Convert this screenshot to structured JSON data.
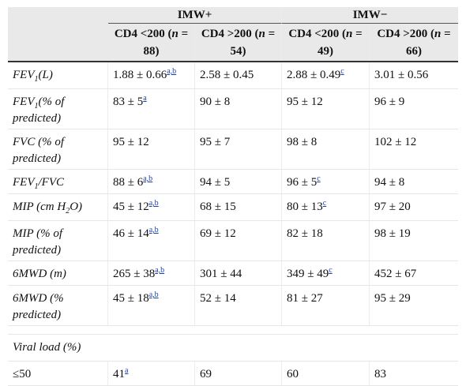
{
  "table": {
    "group_headers": [
      "IMW+",
      "IMW−"
    ],
    "col_headers": [
      {
        "pre": "CD4 <200 (",
        "n": "n",
        "post": " = 88)"
      },
      {
        "pre": "CD4 >200 (",
        "n": "n",
        "post": " = 54)"
      },
      {
        "pre": "CD4 <200 (",
        "n": "n",
        "post": " = 49)"
      },
      {
        "pre": "CD4 >200 (",
        "n": "n",
        "post": " = 66)"
      }
    ],
    "rows": [
      {
        "label_main": "FEV",
        "label_sub": "1",
        "label_rest": "(L)",
        "cells": [
          {
            "v": "1.88 ± 0.66",
            "s": "a,b"
          },
          {
            "v": "2.58 ± 0.45",
            "s": ""
          },
          {
            "v": "2.88 ± 0.49",
            "s": "c"
          },
          {
            "v": "3.01 ± 0.56",
            "s": ""
          }
        ]
      },
      {
        "label_main": "FEV",
        "label_sub": "1",
        "label_rest": "(% of predicted)",
        "cells": [
          {
            "v": "83 ± 5",
            "s": "a"
          },
          {
            "v": "90 ± 8",
            "s": ""
          },
          {
            "v": "95 ± 12",
            "s": ""
          },
          {
            "v": "96 ± 9",
            "s": ""
          }
        ]
      },
      {
        "label_main": "FVC (% of predicted)",
        "label_sub": "",
        "label_rest": "",
        "cells": [
          {
            "v": "95 ± 12",
            "s": ""
          },
          {
            "v": "95 ± 7",
            "s": ""
          },
          {
            "v": "98 ± 8",
            "s": ""
          },
          {
            "v": "102 ± 12",
            "s": ""
          }
        ]
      },
      {
        "label_main": "FEV",
        "label_sub": "1",
        "label_rest": "/FVC",
        "cells": [
          {
            "v": "88 ± 6",
            "s": "a,b"
          },
          {
            "v": "94 ± 5",
            "s": ""
          },
          {
            "v": "96 ± 5",
            "s": "c"
          },
          {
            "v": "94 ± 8",
            "s": ""
          }
        ]
      },
      {
        "label_main": "MIP (cm H",
        "label_sub": "2",
        "label_rest": "O)",
        "cells": [
          {
            "v": "45 ± 12",
            "s": "a,b"
          },
          {
            "v": "68 ± 15",
            "s": ""
          },
          {
            "v": "80 ± 13",
            "s": "c"
          },
          {
            "v": "97 ± 20",
            "s": ""
          }
        ]
      },
      {
        "label_main": "MIP (% of predicted)",
        "label_sub": "",
        "label_rest": "",
        "cells": [
          {
            "v": "46 ± 14",
            "s": "a,b"
          },
          {
            "v": "69 ± 12",
            "s": ""
          },
          {
            "v": "82 ± 18",
            "s": ""
          },
          {
            "v": "98 ± 19",
            "s": ""
          }
        ]
      },
      {
        "label_main": "6MWD (m)",
        "label_sub": "",
        "label_rest": "",
        "cells": [
          {
            "v": "265 ± 38",
            "s": "a,b"
          },
          {
            "v": "301 ± 44",
            "s": ""
          },
          {
            "v": "349 ± 49",
            "s": "c"
          },
          {
            "v": "452 ± 67",
            "s": ""
          }
        ]
      },
      {
        "label_main": "6MWD (% predicted)",
        "label_sub": "",
        "label_rest": "",
        "cells": [
          {
            "v": "45 ± 18",
            "s": "a,b"
          },
          {
            "v": "52 ± 14",
            "s": ""
          },
          {
            "v": "81 ± 27",
            "s": ""
          },
          {
            "v": "95 ± 29",
            "s": ""
          }
        ]
      }
    ],
    "section_label": "Viral load (%)",
    "last_row": {
      "label": "≤50",
      "cells": [
        {
          "v": "41",
          "s": "a"
        },
        {
          "v": "69",
          "s": ""
        },
        {
          "v": "60",
          "s": ""
        },
        {
          "v": "83",
          "s": ""
        }
      ]
    }
  }
}
